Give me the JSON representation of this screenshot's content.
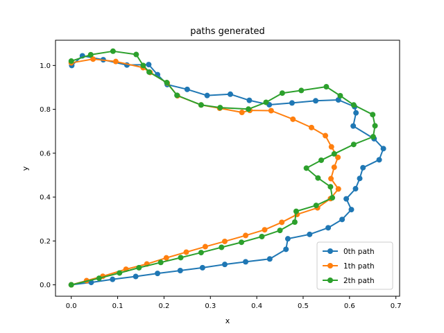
{
  "chart_data": {
    "type": "line",
    "title": "paths generated",
    "xlabel": "x",
    "ylabel": "y",
    "xlim": [
      -0.034,
      0.708
    ],
    "ylim": [
      -0.052,
      1.115
    ],
    "xticks": [
      0.0,
      0.1,
      0.2,
      0.3,
      0.4,
      0.5,
      0.6,
      0.7
    ],
    "xtick_labels": [
      "0.0",
      "0.1",
      "0.2",
      "0.3",
      "0.4",
      "0.5",
      "0.6",
      "0.7"
    ],
    "yticks": [
      0.0,
      0.2,
      0.4,
      0.6,
      0.8,
      1.0
    ],
    "ytick_labels": [
      "0.0",
      "0.2",
      "0.4",
      "0.6",
      "0.8",
      "1.0"
    ],
    "grid": false,
    "legend_position": "bottom-right",
    "series": [
      {
        "name": "0th path",
        "color": "#1f77b4",
        "points": [
          [
            0.0,
            0.0
          ],
          [
            0.043,
            0.011
          ],
          [
            0.089,
            0.025
          ],
          [
            0.139,
            0.038
          ],
          [
            0.186,
            0.052
          ],
          [
            0.235,
            0.065
          ],
          [
            0.283,
            0.078
          ],
          [
            0.331,
            0.093
          ],
          [
            0.376,
            0.105
          ],
          [
            0.428,
            0.118
          ],
          [
            0.463,
            0.162
          ],
          [
            0.467,
            0.21
          ],
          [
            0.514,
            0.23
          ],
          [
            0.554,
            0.26
          ],
          [
            0.584,
            0.298
          ],
          [
            0.604,
            0.343
          ],
          [
            0.593,
            0.392
          ],
          [
            0.613,
            0.438
          ],
          [
            0.622,
            0.485
          ],
          [
            0.629,
            0.534
          ],
          [
            0.664,
            0.57
          ],
          [
            0.673,
            0.621
          ],
          [
            0.653,
            0.666
          ],
          [
            0.608,
            0.724
          ],
          [
            0.614,
            0.784
          ],
          [
            0.611,
            0.812
          ],
          [
            0.576,
            0.843
          ],
          [
            0.527,
            0.839
          ],
          [
            0.476,
            0.829
          ],
          [
            0.427,
            0.821
          ],
          [
            0.384,
            0.841
          ],
          [
            0.343,
            0.869
          ],
          [
            0.293,
            0.863
          ],
          [
            0.25,
            0.891
          ],
          [
            0.207,
            0.913
          ],
          [
            0.186,
            0.958
          ],
          [
            0.167,
            1.004
          ],
          [
            0.12,
            1.002
          ],
          [
            0.069,
            1.026
          ],
          [
            0.024,
            1.044
          ],
          [
            0.001,
            1.0
          ]
        ]
      },
      {
        "name": "1th path",
        "color": "#ff7f0e",
        "points": [
          [
            0.0,
            0.0
          ],
          [
            0.033,
            0.019
          ],
          [
            0.068,
            0.039
          ],
          [
            0.118,
            0.071
          ],
          [
            0.163,
            0.095
          ],
          [
            0.205,
            0.123
          ],
          [
            0.248,
            0.149
          ],
          [
            0.289,
            0.174
          ],
          [
            0.331,
            0.198
          ],
          [
            0.376,
            0.225
          ],
          [
            0.417,
            0.251
          ],
          [
            0.454,
            0.285
          ],
          [
            0.487,
            0.321
          ],
          [
            0.531,
            0.351
          ],
          [
            0.559,
            0.393
          ],
          [
            0.576,
            0.437
          ],
          [
            0.56,
            0.484
          ],
          [
            0.567,
            0.536
          ],
          [
            0.575,
            0.581
          ],
          [
            0.561,
            0.629
          ],
          [
            0.548,
            0.68
          ],
          [
            0.518,
            0.717
          ],
          [
            0.478,
            0.755
          ],
          [
            0.431,
            0.794
          ],
          [
            0.385,
            0.795
          ],
          [
            0.368,
            0.786
          ],
          [
            0.32,
            0.805
          ],
          [
            0.28,
            0.82
          ],
          [
            0.229,
            0.862
          ],
          [
            0.207,
            0.92
          ],
          [
            0.17,
            0.968
          ],
          [
            0.155,
            0.99
          ],
          [
            0.096,
            1.018
          ],
          [
            0.047,
            1.029
          ],
          [
            0.0,
            1.012
          ]
        ]
      },
      {
        "name": "2th path",
        "color": "#2ca02c",
        "points": [
          [
            0.0,
            0.0
          ],
          [
            0.06,
            0.03
          ],
          [
            0.104,
            0.054
          ],
          [
            0.146,
            0.078
          ],
          [
            0.193,
            0.102
          ],
          [
            0.236,
            0.124
          ],
          [
            0.28,
            0.147
          ],
          [
            0.324,
            0.171
          ],
          [
            0.367,
            0.194
          ],
          [
            0.411,
            0.22
          ],
          [
            0.45,
            0.248
          ],
          [
            0.482,
            0.286
          ],
          [
            0.485,
            0.335
          ],
          [
            0.528,
            0.362
          ],
          [
            0.563,
            0.397
          ],
          [
            0.559,
            0.447
          ],
          [
            0.532,
            0.487
          ],
          [
            0.507,
            0.532
          ],
          [
            0.539,
            0.568
          ],
          [
            0.567,
            0.597
          ],
          [
            0.609,
            0.64
          ],
          [
            0.651,
            0.675
          ],
          [
            0.655,
            0.725
          ],
          [
            0.65,
            0.776
          ],
          [
            0.609,
            0.82
          ],
          [
            0.58,
            0.862
          ],
          [
            0.55,
            0.903
          ],
          [
            0.496,
            0.886
          ],
          [
            0.455,
            0.874
          ],
          [
            0.42,
            0.832
          ],
          [
            0.382,
            0.801
          ],
          [
            0.321,
            0.808
          ],
          [
            0.28,
            0.82
          ],
          [
            0.228,
            0.864
          ],
          [
            0.206,
            0.922
          ],
          [
            0.168,
            0.97
          ],
          [
            0.155,
            1.0
          ],
          [
            0.14,
            1.05
          ],
          [
            0.09,
            1.065
          ],
          [
            0.042,
            1.049
          ],
          [
            0.0,
            1.02
          ]
        ]
      }
    ]
  }
}
